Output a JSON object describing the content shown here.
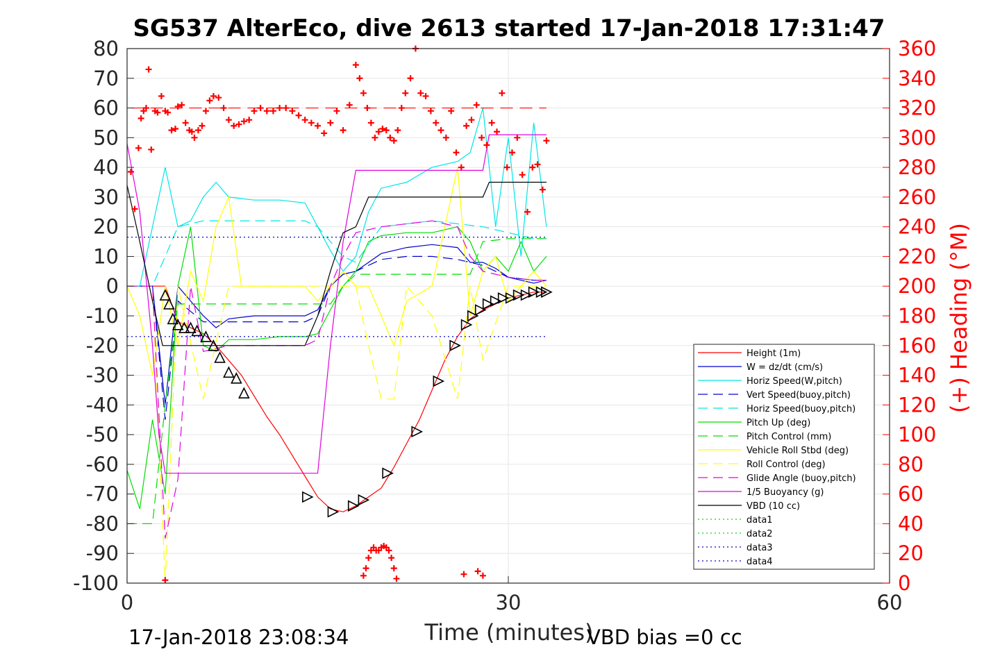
{
  "chart_data": {
    "type": "line",
    "title": "SG537 AlterEco, dive 2613 started 17-Jan-2018 17:31:47",
    "xlabel": "Time (minutes)",
    "ylabel": "",
    "ylabel_right": "(+) Heading (°M)",
    "xlim": [
      0,
      60
    ],
    "ylim": [
      -100,
      80
    ],
    "ylim_right": [
      0,
      360
    ],
    "xticks": [
      "0",
      "30",
      "60"
    ],
    "yticks": [
      "80",
      "70",
      "60",
      "50",
      "40",
      "30",
      "20",
      "10",
      "0",
      "-10",
      "-20",
      "-30",
      "-40",
      "-50",
      "-60",
      "-70",
      "-80",
      "-90",
      "-100"
    ],
    "yticks_right": [
      "360",
      "340",
      "320",
      "300",
      "280",
      "260",
      "240",
      "220",
      "200",
      "180",
      "160",
      "140",
      "120",
      "100",
      "80",
      "60",
      "40",
      "20",
      "0"
    ],
    "grid": true,
    "legend_position": "lower-right",
    "footer_left": "17-Jan-2018 23:08:34",
    "footer_right": "VBD bias =0 cc",
    "colors": {
      "height": "#ff0000",
      "w": "#0000cd",
      "horiz_speed": "#00e5e5",
      "pitch": "#00dd00",
      "roll": "#ffff00",
      "glide": "#e000e0",
      "vbd": "#000000",
      "heading": "#ff0000"
    },
    "series": [
      {
        "name": "Height (1m)",
        "color": "#ff0000",
        "dash": "",
        "x": [
          0,
          3,
          4,
          5,
          6,
          7,
          8,
          9,
          10,
          11,
          12,
          13,
          14,
          15,
          16,
          17,
          18,
          19,
          20,
          21,
          22,
          23,
          24,
          25,
          26,
          27,
          28,
          29,
          30,
          31,
          32,
          33
        ],
        "y": [
          0,
          0,
          -12,
          -14,
          -16,
          -20,
          -25,
          -30,
          -37,
          -44,
          -50,
          -57,
          -64,
          -71,
          -75,
          -76,
          -74,
          -71,
          -68,
          -61,
          -53,
          -45,
          -35,
          -25,
          -17,
          -11,
          -8,
          -6,
          -4,
          -3,
          -2,
          -2
        ]
      },
      {
        "name": "W = dz/dt (cm/s)",
        "color": "#0000cd",
        "dash": "",
        "x": [
          0,
          2,
          3,
          4,
          5,
          6,
          7,
          8,
          10,
          12,
          14,
          15,
          16,
          17,
          18,
          19,
          20,
          22,
          24,
          26,
          27,
          28,
          29,
          30,
          31,
          32,
          33
        ],
        "y": [
          0,
          0,
          -40,
          0,
          -5,
          -10,
          -14,
          -11,
          -10,
          -10,
          -10,
          -8,
          0,
          4,
          5,
          8,
          11,
          13,
          14,
          13,
          8,
          8,
          6,
          3,
          2,
          1,
          2
        ]
      },
      {
        "name": "Horiz Speed(W,pitch)",
        "color": "#00e5e5",
        "dash": "",
        "x": [
          0,
          1,
          2,
          3,
          4,
          5,
          6,
          7,
          8,
          10,
          12,
          14,
          15,
          16,
          17,
          18,
          19,
          20,
          22,
          24,
          26,
          27,
          28,
          29,
          30,
          31,
          32,
          33
        ],
        "y": [
          0,
          0,
          20,
          40,
          20,
          22,
          30,
          35,
          30,
          29,
          29,
          28,
          20,
          12,
          5,
          10,
          25,
          33,
          35,
          40,
          42,
          45,
          60,
          20,
          50,
          10,
          55,
          20
        ]
      },
      {
        "name": "Vert Speed(buoy,pitch)",
        "color": "#0000cd",
        "dash": "14 8",
        "x": [
          0,
          2,
          3,
          4,
          6,
          8,
          10,
          12,
          14,
          15,
          16,
          17,
          18,
          20,
          22,
          24,
          26,
          28,
          30,
          32,
          33
        ],
        "y": [
          0,
          0,
          -45,
          -5,
          -12,
          -12,
          -12,
          -12,
          -12,
          -10,
          0,
          4,
          5,
          9,
          10,
          10,
          9,
          7,
          3,
          2,
          2
        ]
      },
      {
        "name": "Horiz Speed(buoy,pitch)",
        "color": "#00e5e5",
        "dash": "14 8",
        "x": [
          0,
          2,
          3,
          4,
          6,
          8,
          10,
          12,
          14,
          15,
          16,
          17,
          18,
          20,
          22,
          24,
          26,
          28,
          30,
          32,
          33
        ],
        "y": [
          0,
          0,
          10,
          20,
          22,
          22,
          22,
          22,
          22,
          20,
          15,
          10,
          8,
          20,
          21,
          22,
          21,
          20,
          18,
          16,
          16
        ]
      },
      {
        "name": "Pitch Up (deg)",
        "color": "#00dd00",
        "dash": "",
        "x": [
          0,
          1,
          2,
          3,
          4,
          5,
          6,
          7,
          8,
          10,
          12,
          14,
          15,
          16,
          17,
          18,
          19,
          20,
          22,
          24,
          26,
          27,
          28,
          29,
          30,
          31,
          32,
          33
        ],
        "y": [
          -62,
          -75,
          -45,
          -70,
          0,
          20,
          -20,
          -22,
          -18,
          -18,
          -17,
          -17,
          -16,
          -8,
          0,
          5,
          15,
          17,
          18,
          18,
          20,
          15,
          5,
          10,
          5,
          15,
          5,
          10
        ]
      },
      {
        "name": "Pitch Control (mm)",
        "color": "#00dd00",
        "dash": "14 8",
        "x": [
          0,
          2,
          3,
          4,
          6,
          8,
          10,
          12,
          14,
          15,
          16,
          17,
          18,
          20,
          22,
          24,
          26,
          27,
          28,
          30,
          32,
          33
        ],
        "y": [
          -80,
          -80,
          -40,
          -6,
          -6,
          -6,
          -6,
          -6,
          -6,
          -6,
          -6,
          0,
          4,
          4,
          4,
          4,
          4,
          4,
          15,
          16,
          16,
          16
        ]
      },
      {
        "name": "Vehicle Roll Stbd (deg)",
        "color": "#ffff00",
        "dash": "",
        "x": [
          0,
          1,
          2,
          3,
          4,
          5,
          6,
          7,
          8,
          9,
          10,
          12,
          14,
          15,
          16,
          17,
          18,
          19,
          20,
          21,
          22,
          24,
          26,
          27,
          28,
          29,
          30,
          31,
          32,
          33
        ],
        "y": [
          0,
          -10,
          -30,
          0,
          -20,
          5,
          -5,
          20,
          30,
          0,
          0,
          0,
          0,
          -5,
          0,
          5,
          0,
          0,
          -10,
          -20,
          -5,
          0,
          40,
          -10,
          5,
          10,
          -5,
          0,
          5,
          0
        ]
      },
      {
        "name": "Roll Control (deg)",
        "color": "#ffff00",
        "dash": "14 8",
        "x": [
          0,
          2,
          3,
          4,
          6,
          8,
          10,
          12,
          14,
          15,
          16,
          17,
          18,
          19,
          20,
          21,
          22,
          24,
          26,
          27,
          28,
          30,
          32,
          33
        ],
        "y": [
          0,
          0,
          -100,
          0,
          -38,
          0,
          0,
          0,
          0,
          0,
          0,
          0,
          0,
          -20,
          -38,
          -38,
          0,
          -10,
          -38,
          0,
          -25,
          0,
          0,
          0
        ]
      },
      {
        "name": "Glide Angle (buoy,pitch)",
        "color": "#e000e0",
        "dash": "14 8",
        "x": [
          0,
          2,
          3,
          4,
          5,
          6,
          8,
          10,
          12,
          14,
          15,
          16,
          17,
          18,
          20,
          22,
          24,
          26,
          27,
          28,
          30,
          32,
          33
        ],
        "y": [
          0,
          0,
          -85,
          -65,
          0,
          -22,
          -20,
          -20,
          -20,
          -20,
          -18,
          0,
          10,
          18,
          20,
          21,
          22,
          20,
          10,
          5,
          3,
          2,
          2
        ]
      },
      {
        "name": "1/5 Buoyancy (g)",
        "color": "#e000e0",
        "dash": "",
        "x": [
          0,
          1,
          2,
          2.5,
          3,
          4,
          6,
          8,
          10,
          12,
          14,
          15,
          16,
          17,
          18,
          19,
          20,
          22,
          24,
          26,
          27,
          28,
          28.5,
          29,
          30,
          32,
          33
        ],
        "y": [
          48,
          25,
          -20,
          -50,
          -63,
          -63,
          -63,
          -63,
          -63,
          -63,
          -63,
          -63,
          -20,
          15,
          39,
          39,
          39,
          39,
          39,
          39,
          39,
          39,
          51,
          51,
          51,
          51,
          51
        ]
      },
      {
        "name": "VBD (10 cc)",
        "color": "#000000",
        "dash": "",
        "x": [
          0,
          1,
          2,
          2.8,
          3,
          4,
          6,
          8,
          10,
          12,
          14,
          15,
          16,
          17,
          18,
          19,
          20,
          22,
          24,
          26,
          27,
          28,
          28.5,
          29,
          30,
          32,
          33
        ],
        "y": [
          34,
          15,
          -5,
          -20,
          -20,
          -20,
          -20,
          -20,
          -20,
          -20,
          -20,
          -10,
          5,
          18,
          20,
          30,
          30,
          30,
          30,
          30,
          30,
          30,
          35,
          35,
          35,
          35,
          35
        ]
      },
      {
        "name": "data1",
        "color": "#00dd00",
        "dash": "2 4",
        "x": [],
        "y": []
      },
      {
        "name": "data2",
        "color": "#00dd00",
        "dash": "2 4",
        "x": [],
        "y": []
      },
      {
        "name": "data3",
        "color": "#0000cd",
        "dash": "2 4",
        "x": [
          0,
          33
        ],
        "y": [
          16.5,
          16.5
        ]
      },
      {
        "name": "data4",
        "color": "#0000cd",
        "dash": "2 4",
        "x": [
          0,
          33
        ],
        "y": [
          -17,
          -17
        ]
      }
    ],
    "heading_target": {
      "y_right": 320,
      "x": [
        0.3,
        33
      ],
      "color": "#ff0000",
      "dash": "18 10"
    },
    "heading_points": {
      "x": [
        0.3,
        0.6,
        0.9,
        1.1,
        1.3,
        1.5,
        1.7,
        1.9,
        2.2,
        2.4,
        2.7,
        3.0,
        3.2,
        3.5,
        3.8,
        4.0,
        4.3,
        4.6,
        4.9,
        5.1,
        5.3,
        5.6,
        5.9,
        6.2,
        6.5,
        6.8,
        7.2,
        7.6,
        8.0,
        8.4,
        8.8,
        9.2,
        9.6,
        10.0,
        10.5,
        11.0,
        11.5,
        12.0,
        12.5,
        13.0,
        13.5,
        14.0,
        14.5,
        15.0,
        15.5,
        16.0,
        16.5,
        17.0,
        17.5,
        18.0,
        18.3,
        18.6,
        18.9,
        19.2,
        19.5,
        19.8,
        20.1,
        20.4,
        20.7,
        21.0,
        21.3,
        21.6,
        21.9,
        22.3,
        22.7,
        23.1,
        23.5,
        23.9,
        24.3,
        24.7,
        25.1,
        25.5,
        25.9,
        26.3,
        26.7,
        27.1,
        27.5,
        27.9,
        28.3,
        28.7,
        29.1,
        29.5,
        29.9,
        30.3,
        30.7,
        31.1,
        31.5,
        31.9,
        32.3,
        32.7,
        33.0
      ],
      "y": [
        277,
        252,
        293,
        313,
        318,
        320,
        346,
        292,
        318,
        317,
        328,
        318,
        317,
        305,
        306,
        321,
        322,
        310,
        305,
        304,
        300,
        305,
        308,
        318,
        325,
        328,
        327,
        320,
        312,
        308,
        309,
        311,
        312,
        318,
        320,
        318,
        318,
        320,
        320,
        318,
        315,
        312,
        310,
        308,
        303,
        310,
        318,
        305,
        322,
        349,
        340,
        330,
        320,
        310,
        300,
        304,
        306,
        305,
        300,
        298,
        305,
        320,
        330,
        340,
        360,
        330,
        328,
        318,
        310,
        305,
        300,
        318,
        290,
        280,
        308,
        312,
        322,
        300,
        295,
        310,
        304,
        330,
        280,
        290,
        300,
        275,
        250,
        280,
        282,
        265,
        298
      ]
    },
    "heading_low_points": {
      "x": [
        3.0,
        18.6,
        18.8,
        19.0,
        19.2,
        19.4,
        19.6,
        19.8,
        20.0,
        20.2,
        20.4,
        20.6,
        20.8,
        21.0,
        21.2,
        26.5,
        27.6,
        28.0
      ],
      "y": [
        2,
        5,
        10,
        17,
        22,
        24,
        22,
        22,
        24,
        25,
        24,
        22,
        17,
        10,
        3,
        6,
        8,
        5
      ]
    },
    "markers": {
      "x": [
        3.0,
        3.3,
        3.6,
        4.0,
        4.5,
        5.0,
        5.5,
        6.2,
        6.8,
        7.3,
        8.0,
        8.6,
        9.2,
        14.2,
        16.2,
        17.8,
        18.6,
        20.5,
        22.8,
        24.5,
        25.8,
        26.7,
        27.2,
        27.8,
        28.4,
        29.0,
        29.6,
        30.2,
        30.8,
        31.4,
        32.0,
        32.6,
        33.0
      ],
      "y": [
        -3,
        -6,
        -11,
        -13,
        -14,
        -14,
        -15,
        -17,
        -20,
        -24,
        -29,
        -31,
        -36,
        -71,
        -76,
        -74,
        -72,
        -63,
        -49,
        -32,
        -20,
        -13,
        -10,
        -8,
        -6,
        -5,
        -4,
        -4,
        -3,
        -3,
        -2,
        -2,
        -2
      ]
    }
  }
}
